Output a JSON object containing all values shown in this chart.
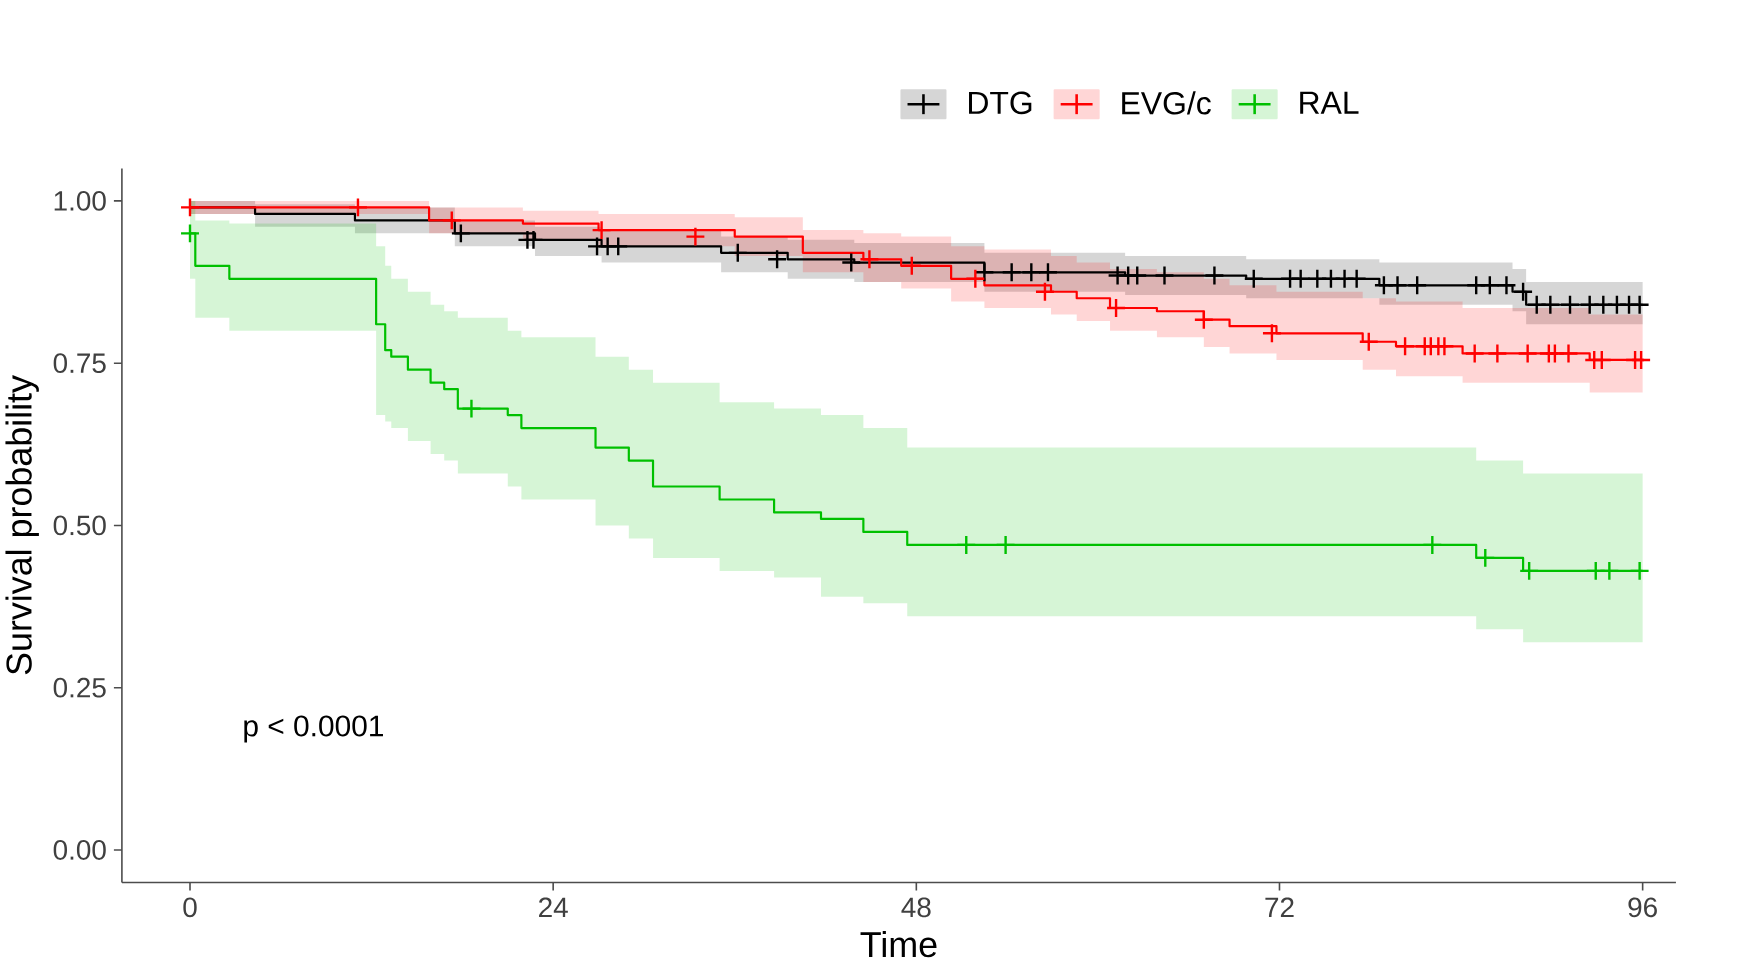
{
  "chart_data": {
    "type": "step",
    "xlabel": "Time",
    "ylabel": "Survival probability",
    "xlim": [
      -4.5,
      98.2
    ],
    "ylim": [
      -0.05,
      1.05
    ],
    "xticks": [
      0,
      24,
      48,
      72,
      96
    ],
    "yticks": [
      {
        "value": 0,
        "label": "0.00"
      },
      {
        "value": 0.25,
        "label": "0.25"
      },
      {
        "value": 0.5,
        "label": "0.50"
      },
      {
        "value": 0.75,
        "label": "0.75"
      },
      {
        "value": 1,
        "label": "1.00"
      }
    ],
    "legend": "top",
    "annotations": [
      "p < 0.0001"
    ],
    "series": [
      {
        "name": "DTG",
        "color": "#000000",
        "x": [
          0,
          4.3,
          10.9,
          17.5,
          22.8,
          27.2,
          35.1,
          39.5,
          43.9,
          52.5,
          61.8,
          69.8,
          78.6,
          87.4,
          88.3,
          96
        ],
        "values": [
          0.99,
          0.98,
          0.97,
          0.95,
          0.94,
          0.93,
          0.92,
          0.91,
          0.905,
          0.89,
          0.885,
          0.88,
          0.87,
          0.86,
          0.84,
          0.84
        ],
        "upper": [
          1.0,
          0.995,
          0.99,
          0.97,
          0.96,
          0.955,
          0.945,
          0.94,
          0.935,
          0.92,
          0.915,
          0.91,
          0.905,
          0.895,
          0.875,
          0.875
        ],
        "lower": [
          0.98,
          0.96,
          0.95,
          0.93,
          0.915,
          0.905,
          0.89,
          0.88,
          0.875,
          0.86,
          0.855,
          0.85,
          0.84,
          0.83,
          0.81,
          0.81
        ]
      },
      {
        "name": "EVG/c",
        "color": "#ff0000",
        "x": [
          0,
          15.8,
          22,
          27,
          36,
          40.5,
          44.5,
          47,
          50.3,
          52.5,
          56.9,
          58.6,
          60.8,
          63.9,
          67.0,
          68.7,
          71.8,
          77.5,
          79.7,
          84.1,
          92.5,
          96
        ],
        "values": [
          0.99,
          0.97,
          0.965,
          0.955,
          0.945,
          0.92,
          0.91,
          0.9,
          0.88,
          0.87,
          0.86,
          0.85,
          0.835,
          0.83,
          0.817,
          0.807,
          0.796,
          0.783,
          0.776,
          0.765,
          0.755,
          0.755
        ],
        "upper": [
          1.0,
          0.99,
          0.985,
          0.98,
          0.975,
          0.955,
          0.95,
          0.945,
          0.93,
          0.925,
          0.915,
          0.905,
          0.895,
          0.89,
          0.88,
          0.87,
          0.86,
          0.85,
          0.845,
          0.835,
          0.825,
          0.825
        ],
        "lower": [
          0.98,
          0.95,
          0.94,
          0.93,
          0.915,
          0.89,
          0.875,
          0.865,
          0.845,
          0.835,
          0.825,
          0.815,
          0.8,
          0.79,
          0.775,
          0.765,
          0.755,
          0.74,
          0.73,
          0.72,
          0.705,
          0.705
        ]
      },
      {
        "name": "RAL",
        "color": "#00c000",
        "x": [
          0,
          0.35,
          2.6,
          12.3,
          12.9,
          13.3,
          14.4,
          15.9,
          16.8,
          17.7,
          21.0,
          21.9,
          26.8,
          29.0,
          30.6,
          35.0,
          38.6,
          41.7,
          44.5,
          47.4,
          85.0,
          88.1,
          96
        ],
        "values": [
          0.95,
          0.9,
          0.88,
          0.81,
          0.77,
          0.76,
          0.74,
          0.72,
          0.71,
          0.68,
          0.67,
          0.65,
          0.62,
          0.6,
          0.56,
          0.54,
          0.52,
          0.51,
          0.49,
          0.47,
          0.45,
          0.43,
          0.43
        ],
        "upper": [
          1.0,
          0.97,
          0.965,
          0.93,
          0.9,
          0.88,
          0.86,
          0.84,
          0.83,
          0.82,
          0.8,
          0.79,
          0.76,
          0.74,
          0.72,
          0.69,
          0.68,
          0.67,
          0.65,
          0.62,
          0.6,
          0.58,
          0.58
        ],
        "lower": [
          0.88,
          0.82,
          0.8,
          0.67,
          0.66,
          0.65,
          0.63,
          0.61,
          0.6,
          0.58,
          0.56,
          0.54,
          0.5,
          0.48,
          0.45,
          0.43,
          0.42,
          0.39,
          0.38,
          0.36,
          0.34,
          0.32,
          0.32
        ]
      },
      {
        "type": "scatter",
        "marker": "cross",
        "color": "#000000",
        "x": [
          17.9,
          22.3,
          22.7,
          26.9,
          27.6,
          28.3,
          36.2,
          38.8,
          43.7,
          52.5,
          54.3,
          55.6,
          56.7,
          61.3,
          62.0,
          62.6,
          64.4,
          67.7,
          70.3,
          72.7,
          73.4,
          74.5,
          75.4,
          76.3,
          77.1,
          78.9,
          79.8,
          81.1,
          85.0,
          85.9,
          87.0,
          88.1,
          89.0,
          89.9,
          91.2,
          92.5,
          93.4,
          94.3,
          95.1,
          95.8
        ],
        "values": [
          0.95,
          0.94,
          0.94,
          0.93,
          0.93,
          0.93,
          0.92,
          0.91,
          0.905,
          0.89,
          0.89,
          0.89,
          0.89,
          0.885,
          0.885,
          0.885,
          0.885,
          0.885,
          0.88,
          0.88,
          0.88,
          0.88,
          0.88,
          0.88,
          0.88,
          0.87,
          0.87,
          0.87,
          0.87,
          0.87,
          0.87,
          0.86,
          0.84,
          0.84,
          0.84,
          0.84,
          0.84,
          0.84,
          0.84,
          0.84
        ]
      },
      {
        "type": "scatter",
        "marker": "cross",
        "color": "#ff0000",
        "x": [
          0,
          11.1,
          17.3,
          27.2,
          33.4,
          44.9,
          47.7,
          51.9,
          56.5,
          61.2,
          67.0,
          71.5,
          77.9,
          80.3,
          81.6,
          82.0,
          82.5,
          82.9,
          84.9,
          86.4,
          88.4,
          89.8,
          90.2,
          91.1,
          92.8,
          93.3,
          95.5,
          95.9
        ],
        "values": [
          0.99,
          0.99,
          0.97,
          0.955,
          0.945,
          0.91,
          0.9,
          0.88,
          0.86,
          0.835,
          0.817,
          0.796,
          0.783,
          0.776,
          0.776,
          0.776,
          0.776,
          0.776,
          0.765,
          0.765,
          0.765,
          0.765,
          0.765,
          0.765,
          0.755,
          0.755,
          0.755,
          0.755
        ]
      },
      {
        "type": "scatter",
        "marker": "cross",
        "color": "#00c000",
        "x": [
          0,
          18.6,
          51.3,
          53.9,
          82.1,
          85.6,
          88.5,
          92.9,
          93.8,
          95.8
        ],
        "values": [
          0.95,
          0.68,
          0.47,
          0.47,
          0.47,
          0.45,
          0.43,
          0.43,
          0.43,
          0.43
        ]
      }
    ]
  }
}
